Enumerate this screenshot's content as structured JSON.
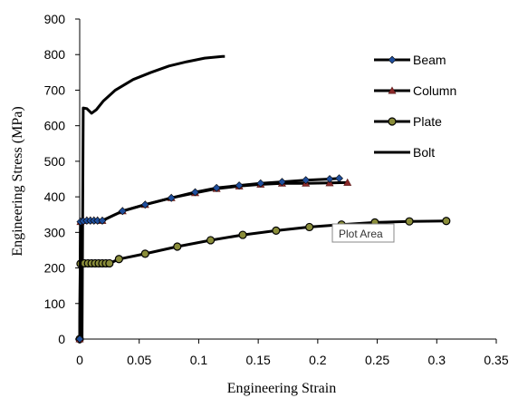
{
  "chart_data": {
    "type": "line",
    "title": "",
    "xlabel": "Engineering Strain",
    "ylabel": "Engineering Stress (MPa)",
    "xlim": [
      0,
      0.35
    ],
    "ylim": [
      0,
      900
    ],
    "x_ticks": [
      0,
      0.05,
      0.1,
      0.15,
      0.2,
      0.25,
      0.3,
      0.35
    ],
    "x_tick_labels": [
      "0",
      "0.05",
      "0.1",
      "0.15",
      "0.2",
      "0.25",
      "0.3",
      "0.35"
    ],
    "y_ticks": [
      0,
      100,
      200,
      300,
      400,
      500,
      600,
      700,
      800,
      900
    ],
    "y_tick_labels": [
      "0",
      "100",
      "200",
      "300",
      "400",
      "500",
      "600",
      "700",
      "800",
      "900"
    ],
    "grid": false,
    "legend_position": "top-right",
    "series": [
      {
        "name": "Beam",
        "marker": "diamond",
        "color": "#000000",
        "marker_color": "#1f4e9c",
        "x": [
          0,
          0.0007,
          0.003,
          0.006,
          0.009,
          0.012,
          0.015,
          0.019,
          0.036,
          0.055,
          0.077,
          0.097,
          0.115,
          0.134,
          0.152,
          0.17,
          0.19,
          0.21,
          0.218
        ],
        "y": [
          0,
          330,
          332,
          333,
          333,
          333,
          333,
          333,
          360,
          378,
          397,
          413,
          425,
          432,
          438,
          442,
          447,
          450,
          452
        ]
      },
      {
        "name": "Column",
        "marker": "triangle",
        "color": "#000000",
        "marker_color": "#8b2a2a",
        "x": [
          0,
          0.0007,
          0.003,
          0.006,
          0.009,
          0.012,
          0.015,
          0.019,
          0.036,
          0.055,
          0.077,
          0.097,
          0.115,
          0.134,
          0.152,
          0.17,
          0.19,
          0.21,
          0.225
        ],
        "y": [
          0,
          330,
          333,
          334,
          334,
          334,
          334,
          333,
          360,
          378,
          397,
          411,
          423,
          430,
          435,
          438,
          438,
          439,
          440
        ]
      },
      {
        "name": "Plate",
        "marker": "circle",
        "color": "#000000",
        "marker_color": "#8a8d3a",
        "x": [
          0,
          0.0007,
          0.004,
          0.007,
          0.01,
          0.013,
          0.016,
          0.019,
          0.022,
          0.025,
          0.033,
          0.055,
          0.082,
          0.11,
          0.137,
          0.165,
          0.193,
          0.22,
          0.248,
          0.277,
          0.308
        ],
        "y": [
          0,
          212,
          213,
          213,
          213,
          213,
          213,
          213,
          213,
          213,
          225,
          240,
          260,
          278,
          293,
          305,
          315,
          322,
          328,
          331,
          332
        ]
      },
      {
        "name": "Bolt",
        "marker": "none",
        "color": "#000000",
        "marker_color": "#000000",
        "x": [
          0,
          0.002,
          0.003,
          0.006,
          0.01,
          0.014,
          0.02,
          0.03,
          0.045,
          0.06,
          0.075,
          0.09,
          0.105,
          0.12,
          0.122
        ],
        "y": [
          0,
          0,
          650,
          648,
          635,
          645,
          670,
          700,
          730,
          750,
          768,
          780,
          790,
          795,
          795
        ]
      }
    ],
    "tooltip": "Plot Area"
  }
}
